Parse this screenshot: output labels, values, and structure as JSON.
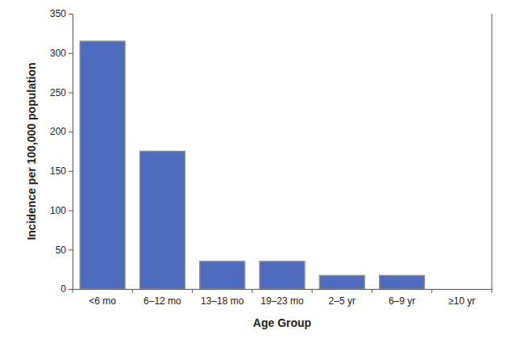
{
  "chart_data": {
    "type": "bar",
    "x_label": "Age Group",
    "y_label": "Incidence per 100,000 population",
    "categories": [
      "<6 mo",
      "6–12 mo",
      "13–18 mo",
      "19–23 mo",
      "2–5 yr",
      "6–9 yr",
      "≥10 yr"
    ],
    "values": [
      315,
      175,
      35,
      35,
      17,
      17,
      0
    ],
    "color": "#4f6bbd",
    "ylim": [
      0,
      350
    ],
    "yticks": [
      0,
      50,
      100,
      150,
      200,
      250,
      300,
      350
    ],
    "grid": false
  }
}
